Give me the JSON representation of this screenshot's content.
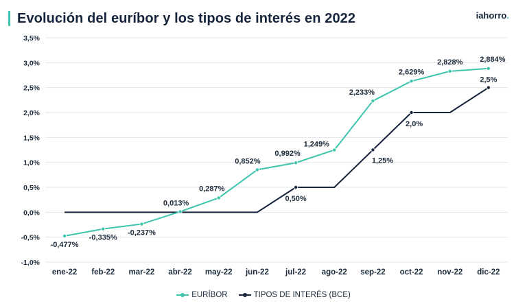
{
  "header": {
    "title": "Evolución del euríbor y los tipos de interés en 2022",
    "logo_main": "iahorro",
    "logo_dot": "."
  },
  "colors": {
    "euribor": "#3cc4ad",
    "bce": "#16243b",
    "grid": "#e3e6ea",
    "accent": "#3cc4ad"
  },
  "chart_data": {
    "type": "line",
    "title": "Evolución del euríbor y los tipos de interés en 2022",
    "categories": [
      "ene-22",
      "feb-22",
      "mar-22",
      "abr-22",
      "may-22",
      "jun-22",
      "jul-22",
      "ago-22",
      "sep-22",
      "oct-22",
      "nov-22",
      "dic-22"
    ],
    "ylim": [
      -1.0,
      3.5
    ],
    "yticks": [
      3.5,
      3.0,
      2.5,
      2.0,
      1.5,
      1.0,
      0.5,
      0.0,
      -0.5,
      -1.0
    ],
    "ytick_labels": [
      "3,5%",
      "3,0%",
      "2,5%",
      "2,0%",
      "1,5%",
      "1,0%",
      "0,5%",
      "0,0%",
      "-0,5%",
      "-1,0%"
    ],
    "grid": true,
    "legend_position": "bottom",
    "series": [
      {
        "name": "EURÍBOR",
        "values": [
          -0.477,
          -0.335,
          -0.237,
          0.013,
          0.287,
          0.852,
          0.992,
          1.249,
          2.233,
          2.629,
          2.828,
          2.884
        ],
        "labels": [
          "-0,477%",
          "-0,335%",
          "-0,237%",
          "0,013%",
          "0,287%",
          "0,852%",
          "0,992%",
          "1,249%",
          "2,233%",
          "2,629%",
          "2,828%",
          "2,884%"
        ]
      },
      {
        "name": "TIPOS DE INTERÉS (BCE)",
        "values": [
          0,
          0,
          0,
          0,
          0,
          0,
          0.5,
          0.5,
          1.25,
          2.0,
          2.0,
          2.5
        ],
        "labels": [
          "",
          "",
          "",
          "",
          "",
          "",
          "0,50%",
          "",
          "1,25%",
          "2,0%",
          "",
          "2,5%"
        ]
      }
    ]
  }
}
